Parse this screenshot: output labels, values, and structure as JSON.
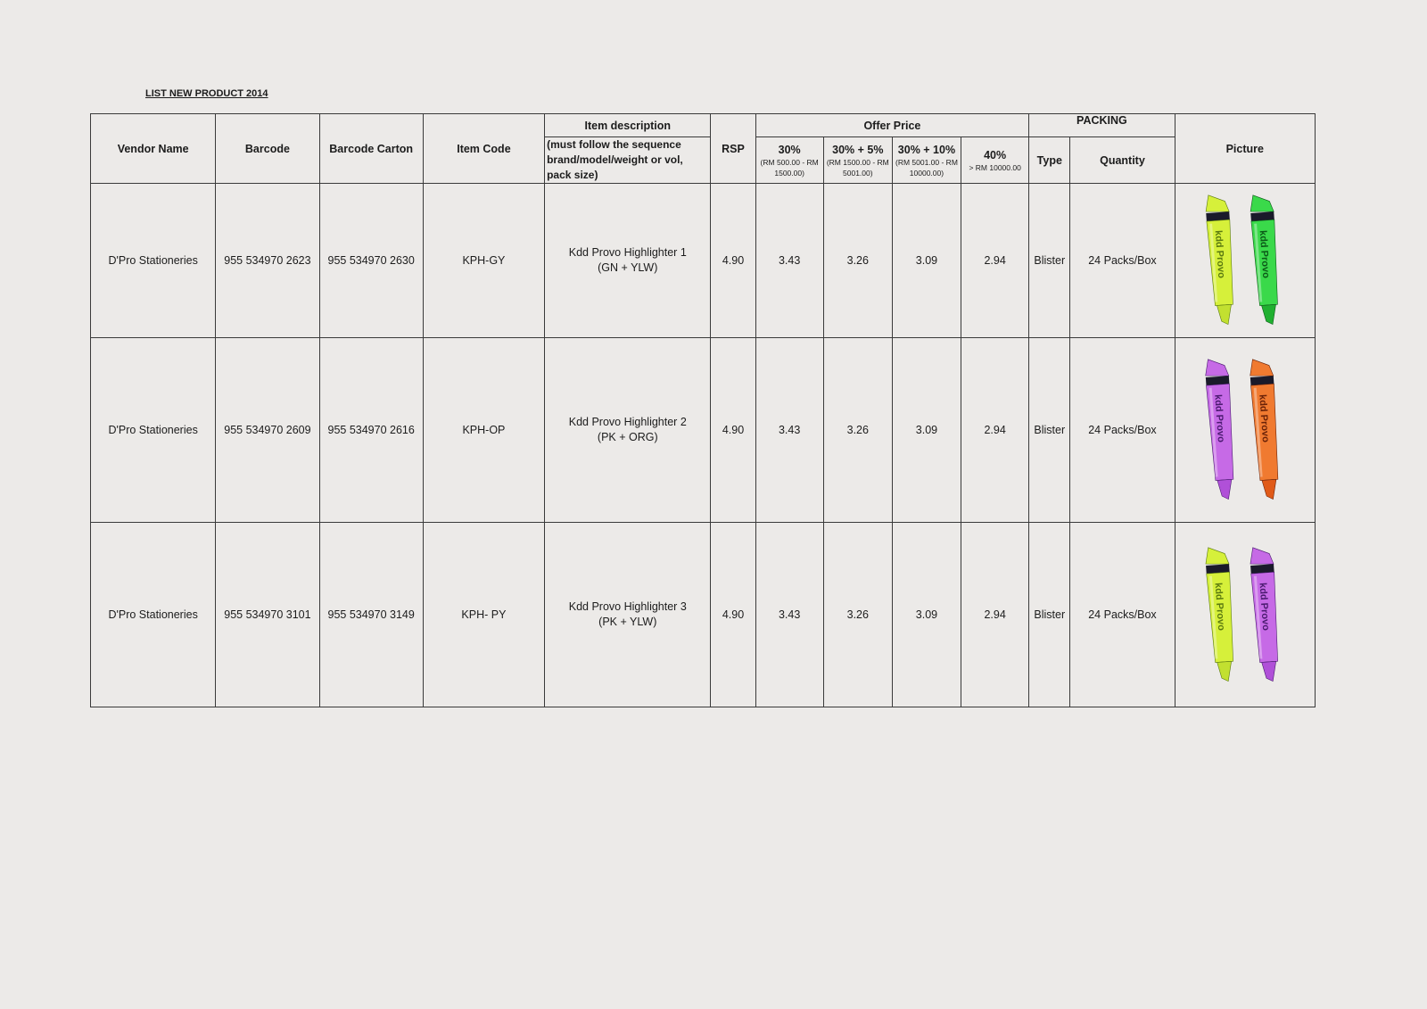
{
  "document": {
    "title": "LIST NEW PRODUCT 2014"
  },
  "headers": {
    "vendor_name": "Vendor Name",
    "barcode": "Barcode",
    "barcode_carton": "Barcode Carton",
    "item_code": "Item Code",
    "item_description": "Item description",
    "item_description_note": "(must follow the sequence brand/model/weight or vol, pack size)",
    "rsp": "RSP",
    "offer_price": "Offer Price",
    "tiers": [
      {
        "pct": "30%",
        "range": "(RM 500.00 - RM 1500.00)"
      },
      {
        "pct": "30% + 5%",
        "range": "(RM 1500.00 - RM 5001.00)"
      },
      {
        "pct": "30% + 10%",
        "range": "(RM 5001.00 - RM 10000.00)"
      },
      {
        "pct": "40%",
        "range": "> RM 10000.00"
      }
    ],
    "packing": "PACKING",
    "type": "Type",
    "quantity": "Quantity",
    "picture": "Picture"
  },
  "rows": [
    {
      "vendor": "D'Pro Stationeries",
      "barcode": "955 534970 2623",
      "barcode_carton": "955 534970 2630",
      "item_code": "KPH-GY",
      "description_line1": "Kdd Provo Highlighter  1",
      "description_line2": "(GN + YLW)",
      "rsp": "4.90",
      "offers": [
        "3.43",
        "3.26",
        "3.09",
        "2.94"
      ],
      "type": "Blister",
      "quantity": "24 Packs/Box",
      "picture": {
        "logo_text": "kdd Provo",
        "markers": [
          {
            "color": "#d6f03a",
            "tip": "#c2e030",
            "ink": "#5a7a10"
          },
          {
            "color": "#3ad94a",
            "tip": "#20b030",
            "ink": "#0c5a18"
          }
        ]
      }
    },
    {
      "vendor": "D'Pro Stationeries",
      "barcode": "955 534970 2609",
      "barcode_carton": "955 534970 2616",
      "item_code": "KPH-OP",
      "description_line1": "Kdd Provo Highlighter  2",
      "description_line2": "(PK + ORG)",
      "rsp": "4.90",
      "offers": [
        "3.43",
        "3.26",
        "3.09",
        "2.94"
      ],
      "type": "Blister",
      "quantity": "24 Packs/Box",
      "picture": {
        "logo_text": "kdd Provo",
        "markers": [
          {
            "color": "#c66ae6",
            "tip": "#b050d8",
            "ink": "#4a1a70"
          },
          {
            "color": "#f07a30",
            "tip": "#e05a18",
            "ink": "#6a2208"
          }
        ]
      }
    },
    {
      "vendor": "D'Pro Stationeries",
      "barcode": "955 534970 3101",
      "barcode_carton": "955 534970 3149",
      "item_code": "KPH- PY",
      "description_line1": "Kdd Provo Highlighter 3",
      "description_line2": "(PK + YLW)",
      "rsp": "4.90",
      "offers": [
        "3.43",
        "3.26",
        "3.09",
        "2.94"
      ],
      "type": "Blister",
      "quantity": "24 Packs/Box",
      "picture": {
        "logo_text": "kdd Provo",
        "markers": [
          {
            "color": "#d6f03a",
            "tip": "#c2e030",
            "ink": "#5a7a10"
          },
          {
            "color": "#c66ae6",
            "tip": "#b050d8",
            "ink": "#4a1a70"
          }
        ]
      }
    }
  ]
}
